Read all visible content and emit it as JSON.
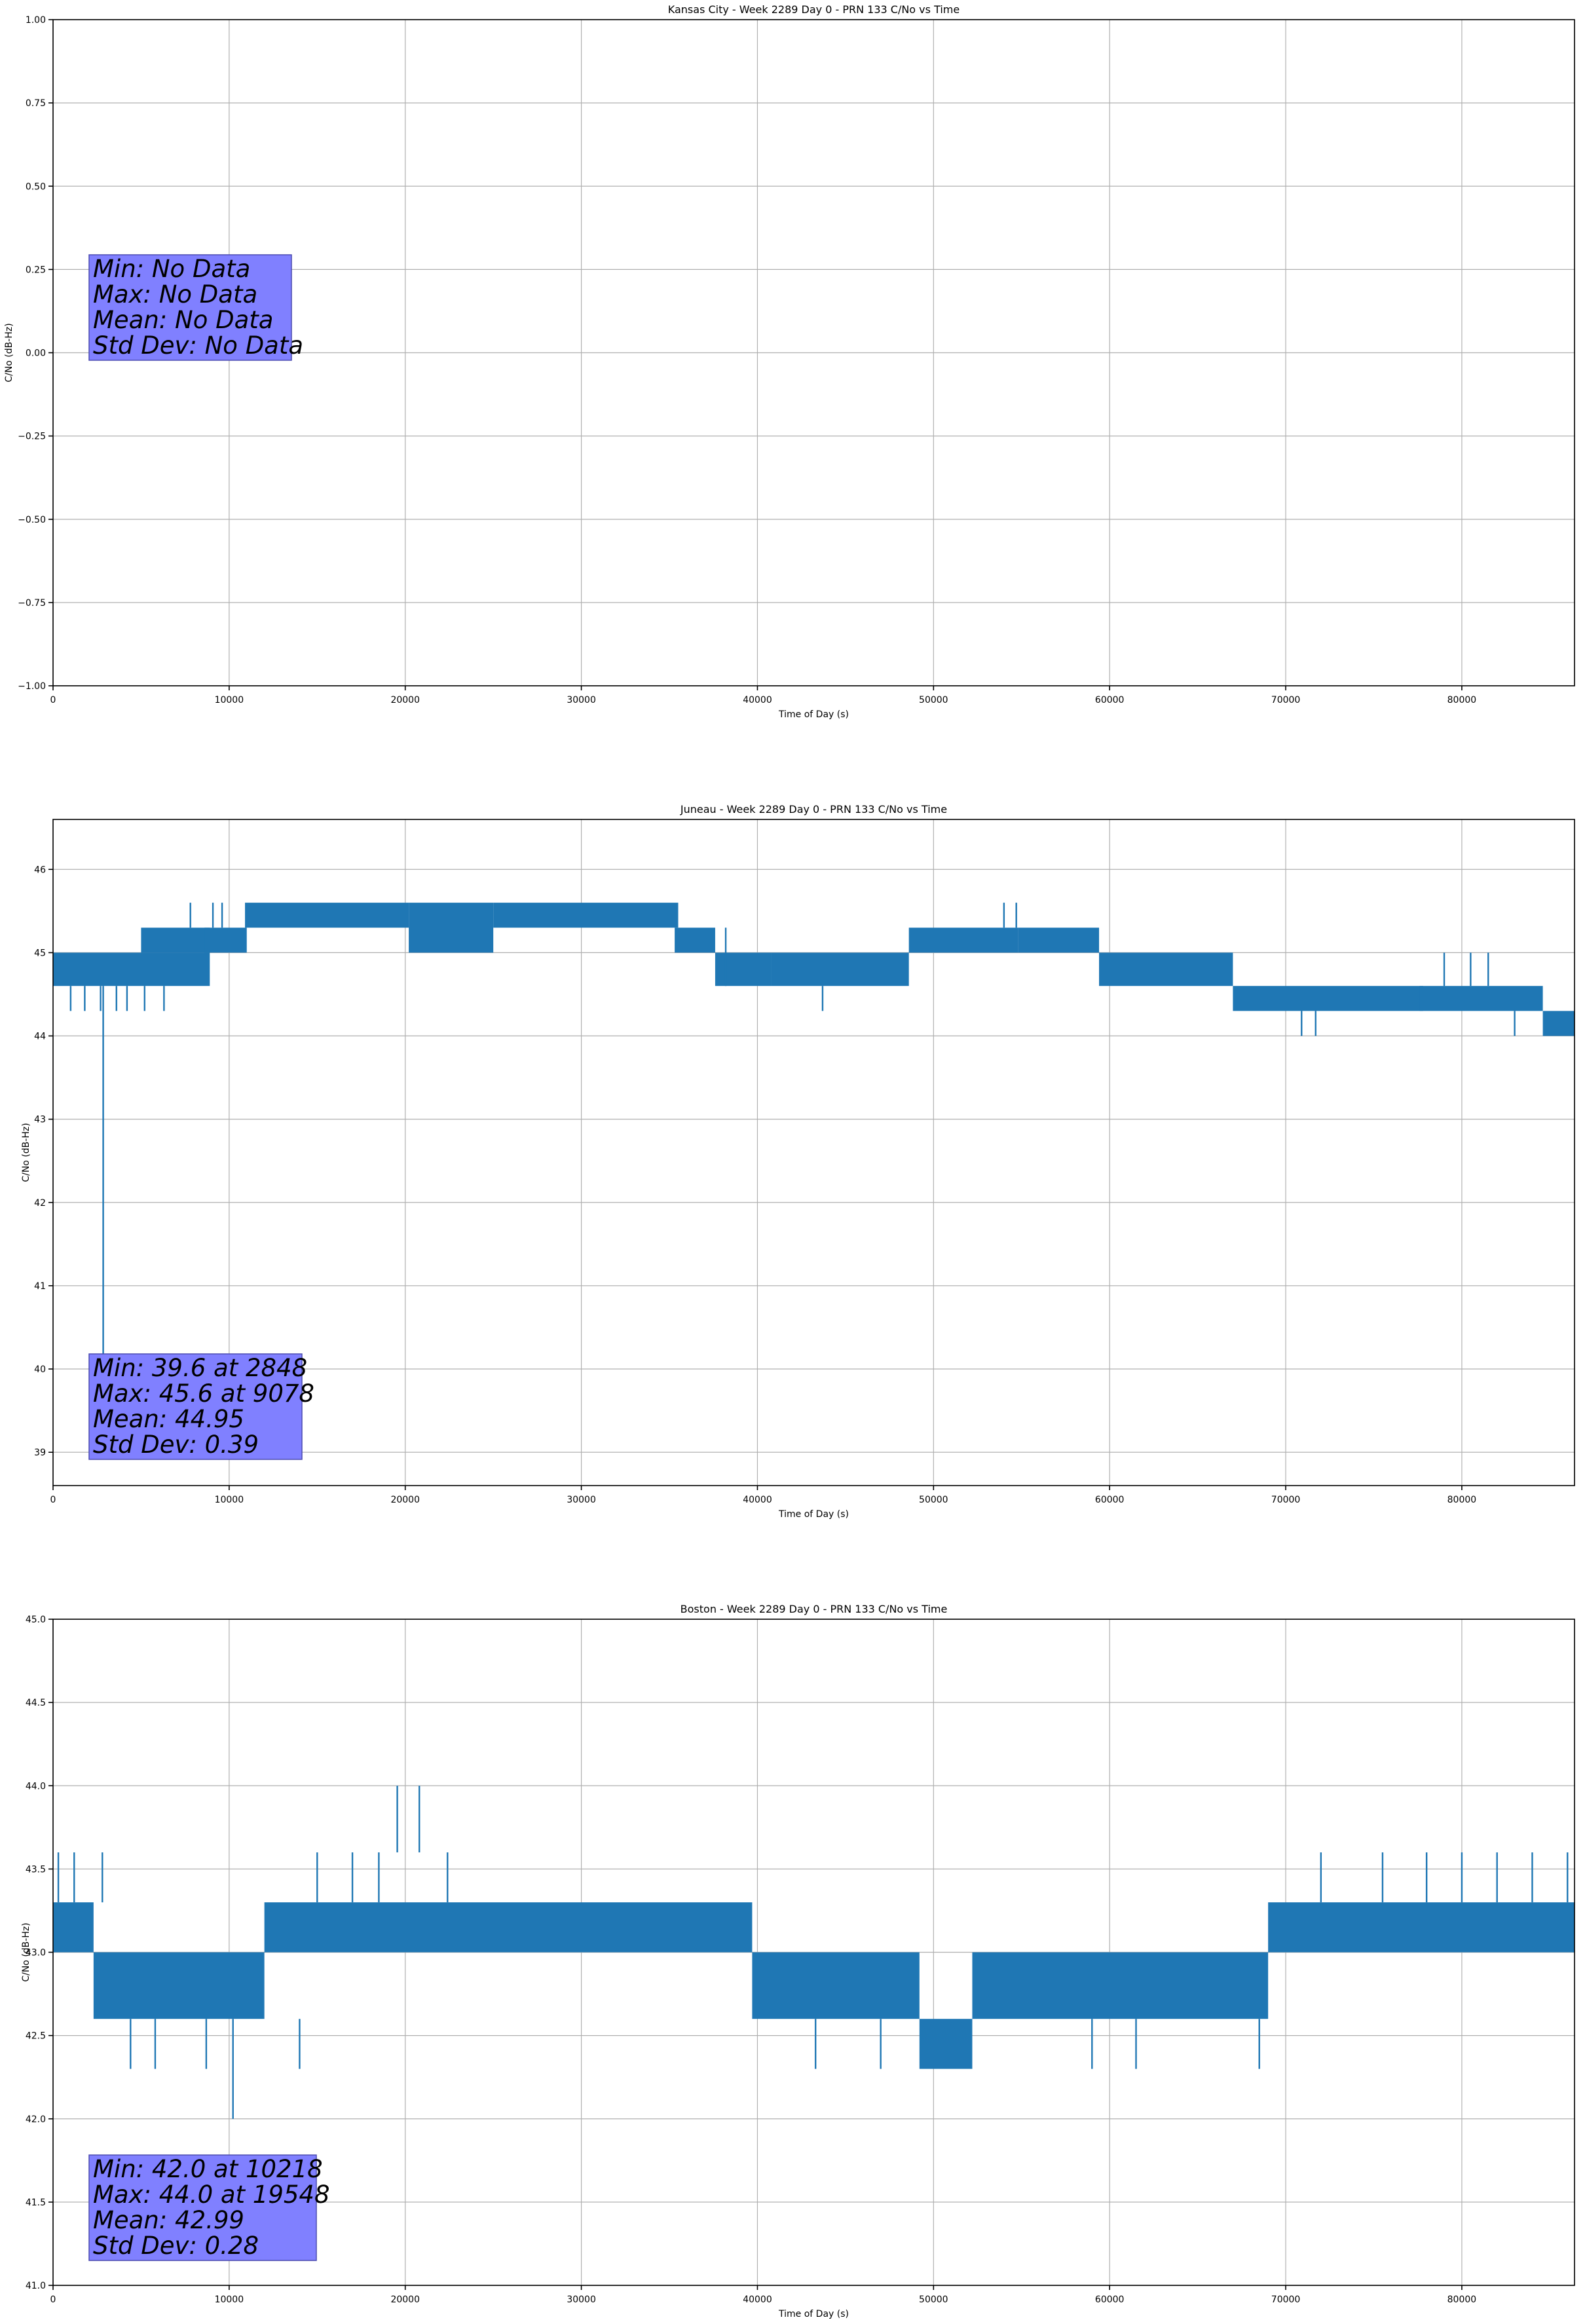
{
  "chart_data": [
    {
      "type": "line",
      "title": "Kansas City - Week 2289 Day 0 - PRN 133 C/No vs Time",
      "xlabel": "Time of Day (s)",
      "ylabel": "C/No (dB-Hz)",
      "xlim": [
        0,
        86400
      ],
      "ylim": [
        -1.0,
        1.0
      ],
      "xticks": [
        0,
        10000,
        20000,
        30000,
        40000,
        50000,
        60000,
        70000,
        80000
      ],
      "xtick_labels": [
        "0",
        "10000",
        "20000",
        "30000",
        "40000",
        "50000",
        "60000",
        "70000",
        "80000"
      ],
      "yticks": [
        -1.0,
        -0.75,
        -0.5,
        -0.25,
        0.0,
        0.25,
        0.5,
        0.75,
        1.0
      ],
      "ytick_labels": [
        "−1.00",
        "−0.75",
        "−0.50",
        "−0.25",
        "0.00",
        "0.25",
        "0.50",
        "0.75",
        "1.00"
      ],
      "grid": true,
      "color": "#1f77b4",
      "series": [],
      "stats": [
        "Min: No Data",
        "Max: No Data",
        "Mean: No Data",
        "Std Dev: No Data"
      ]
    },
    {
      "type": "line",
      "title": "Juneau - Week 2289 Day 0 - PRN 133 C/No vs Time",
      "xlabel": "Time of Day (s)",
      "ylabel": "C/No (dB-Hz)",
      "xlim": [
        0,
        86400
      ],
      "ylim": [
        38.6,
        46.6
      ],
      "xticks": [
        0,
        10000,
        20000,
        30000,
        40000,
        50000,
        60000,
        70000,
        80000
      ],
      "xtick_labels": [
        "0",
        "10000",
        "20000",
        "30000",
        "40000",
        "50000",
        "60000",
        "70000",
        "80000"
      ],
      "yticks": [
        39,
        40,
        41,
        42,
        43,
        44,
        45,
        46
      ],
      "ytick_labels": [
        "39",
        "40",
        "41",
        "42",
        "43",
        "44",
        "45",
        "46"
      ],
      "grid": true,
      "color": "#1f77b4",
      "series": [
        {
          "bands": [
            {
              "x": [
                0,
                8900
              ],
              "y": [
                44.6,
                45.0
              ]
            },
            {
              "x": [
                5000,
                8900
              ],
              "y": [
                45.0,
                45.3
              ]
            },
            {
              "x": [
                8600,
                11000
              ],
              "y": [
                45.0,
                45.3
              ]
            },
            {
              "x": [
                10900,
                20200
              ],
              "y": [
                45.3,
                45.6
              ]
            },
            {
              "x": [
                20200,
                25000
              ],
              "y": [
                45.0,
                45.6
              ]
            },
            {
              "x": [
                25000,
                35500
              ],
              "y": [
                45.3,
                45.6
              ]
            },
            {
              "x": [
                35300,
                37600
              ],
              "y": [
                45.0,
                45.3
              ]
            },
            {
              "x": [
                37600,
                40800
              ],
              "y": [
                44.6,
                45.0
              ]
            },
            {
              "x": [
                40800,
                48600
              ],
              "y": [
                44.6,
                45.0
              ]
            },
            {
              "x": [
                48600,
                54800
              ],
              "y": [
                45.0,
                45.3
              ]
            },
            {
              "x": [
                54800,
                59400
              ],
              "y": [
                45.0,
                45.3
              ]
            },
            {
              "x": [
                59400,
                67000
              ],
              "y": [
                44.6,
                45.0
              ]
            },
            {
              "x": [
                67000,
                77800
              ],
              "y": [
                44.3,
                44.6
              ]
            },
            {
              "x": [
                77600,
                84600
              ],
              "y": [
                44.3,
                44.6
              ]
            },
            {
              "x": [
                84600,
                86400
              ],
              "y": [
                44.0,
                44.3
              ]
            }
          ],
          "spikes": [
            {
              "x": 2848,
              "y": [
                39.6,
                44.6
              ]
            },
            {
              "x": 1000,
              "y": [
                44.3,
                44.6
              ]
            },
            {
              "x": 1800,
              "y": [
                44.3,
                44.6
              ]
            },
            {
              "x": 2700,
              "y": [
                44.3,
                44.6
              ]
            },
            {
              "x": 3600,
              "y": [
                44.3,
                44.6
              ]
            },
            {
              "x": 4200,
              "y": [
                44.3,
                44.6
              ]
            },
            {
              "x": 5200,
              "y": [
                44.3,
                44.6
              ]
            },
            {
              "x": 6300,
              "y": [
                44.3,
                44.6
              ]
            },
            {
              "x": 7800,
              "y": [
                45.3,
                45.6
              ]
            },
            {
              "x": 9078,
              "y": [
                45.3,
                45.6
              ]
            },
            {
              "x": 9600,
              "y": [
                45.3,
                45.6
              ]
            },
            {
              "x": 38200,
              "y": [
                44.6,
                45.3
              ]
            },
            {
              "x": 43700,
              "y": [
                44.3,
                44.6
              ]
            },
            {
              "x": 54000,
              "y": [
                45.3,
                45.6
              ]
            },
            {
              "x": 54700,
              "y": [
                45.3,
                45.6
              ]
            },
            {
              "x": 70900,
              "y": [
                44.0,
                44.3
              ]
            },
            {
              "x": 71700,
              "y": [
                44.0,
                44.3
              ]
            },
            {
              "x": 79000,
              "y": [
                44.6,
                45.0
              ]
            },
            {
              "x": 80500,
              "y": [
                44.6,
                45.0
              ]
            },
            {
              "x": 81500,
              "y": [
                44.6,
                45.0
              ]
            },
            {
              "x": 83000,
              "y": [
                44.0,
                44.3
              ]
            }
          ]
        }
      ],
      "stats": [
        "Min: 39.6 at 2848",
        "Max: 45.6 at 9078",
        "Mean: 44.95",
        "Std Dev: 0.39"
      ]
    },
    {
      "type": "line",
      "title": "Boston - Week 2289 Day 0 - PRN 133 C/No vs Time",
      "xlabel": "Time of Day (s)",
      "ylabel": "C/No (dB-Hz)",
      "xlim": [
        0,
        86400
      ],
      "ylim": [
        41.0,
        45.0
      ],
      "xticks": [
        0,
        10000,
        20000,
        30000,
        40000,
        50000,
        60000,
        70000,
        80000
      ],
      "xtick_labels": [
        "0",
        "10000",
        "20000",
        "30000",
        "40000",
        "50000",
        "60000",
        "70000",
        "80000"
      ],
      "yticks": [
        41.0,
        41.5,
        42.0,
        42.5,
        43.0,
        43.5,
        44.0,
        44.5,
        45.0
      ],
      "ytick_labels": [
        "41.0",
        "41.5",
        "42.0",
        "42.5",
        "43.0",
        "43.5",
        "44.0",
        "44.5",
        "45.0"
      ],
      "grid": true,
      "color": "#1f77b4",
      "series": [
        {
          "bands": [
            {
              "x": [
                0,
                2300
              ],
              "y": [
                43.0,
                43.3
              ]
            },
            {
              "x": [
                2300,
                12000
              ],
              "y": [
                42.6,
                43.0
              ]
            },
            {
              "x": [
                12000,
                39700
              ],
              "y": [
                43.0,
                43.3
              ]
            },
            {
              "x": [
                39700,
                49200
              ],
              "y": [
                42.6,
                43.0
              ]
            },
            {
              "x": [
                49200,
                52200
              ],
              "y": [
                42.3,
                42.6
              ]
            },
            {
              "x": [
                52200,
                69000
              ],
              "y": [
                42.6,
                43.0
              ]
            },
            {
              "x": [
                69000,
                86400
              ],
              "y": [
                43.0,
                43.3
              ]
            }
          ],
          "spikes": [
            {
              "x": 10218,
              "y": [
                42.0,
                42.6
              ]
            },
            {
              "x": 19548,
              "y": [
                43.6,
                44.0
              ]
            },
            {
              "x": 20800,
              "y": [
                43.6,
                44.0
              ]
            },
            {
              "x": 300,
              "y": [
                43.3,
                43.6
              ]
            },
            {
              "x": 1200,
              "y": [
                43.3,
                43.6
              ]
            },
            {
              "x": 2800,
              "y": [
                43.3,
                43.6
              ]
            },
            {
              "x": 4400,
              "y": [
                42.3,
                42.6
              ]
            },
            {
              "x": 5800,
              "y": [
                42.3,
                42.6
              ]
            },
            {
              "x": 8700,
              "y": [
                42.3,
                42.6
              ]
            },
            {
              "x": 14000,
              "y": [
                42.3,
                42.6
              ]
            },
            {
              "x": 15000,
              "y": [
                43.3,
                43.6
              ]
            },
            {
              "x": 17000,
              "y": [
                43.3,
                43.6
              ]
            },
            {
              "x": 18500,
              "y": [
                43.3,
                43.6
              ]
            },
            {
              "x": 22400,
              "y": [
                43.3,
                43.6
              ]
            },
            {
              "x": 43300,
              "y": [
                42.3,
                42.6
              ]
            },
            {
              "x": 47000,
              "y": [
                42.3,
                42.6
              ]
            },
            {
              "x": 59000,
              "y": [
                42.3,
                42.6
              ]
            },
            {
              "x": 61500,
              "y": [
                42.3,
                42.6
              ]
            },
            {
              "x": 68500,
              "y": [
                42.3,
                42.6
              ]
            },
            {
              "x": 72000,
              "y": [
                43.3,
                43.6
              ]
            },
            {
              "x": 75500,
              "y": [
                43.3,
                43.6
              ]
            },
            {
              "x": 78000,
              "y": [
                43.3,
                43.6
              ]
            },
            {
              "x": 80000,
              "y": [
                43.3,
                43.6
              ]
            },
            {
              "x": 82000,
              "y": [
                43.3,
                43.6
              ]
            },
            {
              "x": 84000,
              "y": [
                43.3,
                43.6
              ]
            },
            {
              "x": 86000,
              "y": [
                43.3,
                43.6
              ]
            }
          ]
        }
      ],
      "stats": [
        "Min: 42.0 at 10218",
        "Max: 44.0 at 19548",
        "Mean: 42.99",
        "Std Dev: 0.28"
      ]
    }
  ]
}
